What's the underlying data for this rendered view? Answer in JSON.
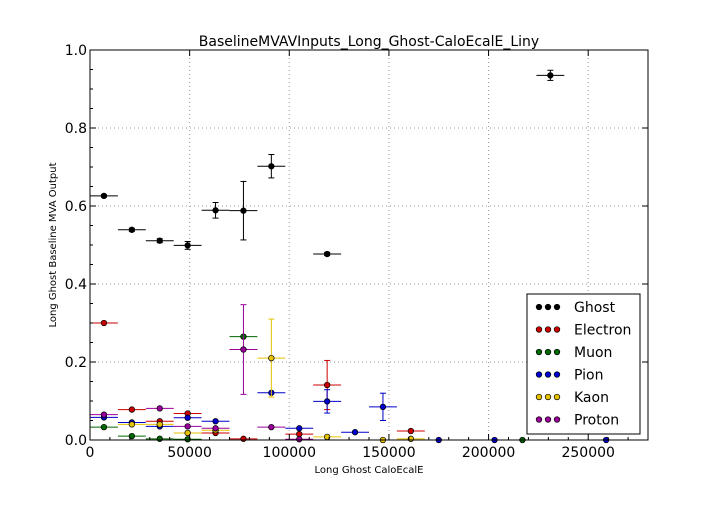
{
  "chart_data": {
    "type": "scatter",
    "title": "BaselineMVAVInputs_Long_Ghost-CaloEcalE_Liny",
    "xlabel": "Long Ghost CaloEcalE",
    "ylabel": "Long Ghost Baseline MVA Output",
    "xlim": [
      0,
      280000
    ],
    "ylim": [
      0,
      1.0
    ],
    "x_ticks": [
      0,
      50000,
      100000,
      150000,
      200000,
      250000
    ],
    "x_tick_labels": [
      "0",
      "50000",
      "100000",
      "150000",
      "200000",
      "250000"
    ],
    "y_ticks": [
      0.0,
      0.2,
      0.4,
      0.6,
      0.8,
      1.0
    ],
    "y_tick_labels": [
      "0.0",
      "0.2",
      "0.4",
      "0.6",
      "0.8",
      "1.0"
    ],
    "grid": true,
    "legend_position": "bottom-right",
    "series": [
      {
        "name": "Ghost",
        "color": "#000000",
        "points": [
          {
            "x": 7000,
            "y": 0.626,
            "xerr": 7000,
            "yerr": 0.003
          },
          {
            "x": 21000,
            "y": 0.539,
            "xerr": 7000,
            "yerr": 0.004
          },
          {
            "x": 35000,
            "y": 0.511,
            "xerr": 7000,
            "yerr": 0.005
          },
          {
            "x": 49000,
            "y": 0.499,
            "xerr": 7000,
            "yerr": 0.01
          },
          {
            "x": 63000,
            "y": 0.589,
            "xerr": 7000,
            "yerr": 0.02
          },
          {
            "x": 77000,
            "y": 0.588,
            "xerr": 7000,
            "yerr": 0.075
          },
          {
            "x": 91000,
            "y": 0.702,
            "xerr": 7000,
            "yerr": 0.03
          },
          {
            "x": 119000,
            "y": 0.477,
            "xerr": 7000,
            "yerr": 0.004
          },
          {
            "x": 231000,
            "y": 0.935,
            "xerr": 7000,
            "yerr": 0.013
          }
        ]
      },
      {
        "name": "Electron",
        "color": "#cc0000",
        "points": [
          {
            "x": 7000,
            "y": 0.3,
            "xerr": 7000,
            "yerr": 0.0
          },
          {
            "x": 21000,
            "y": 0.078,
            "xerr": 7000,
            "yerr": 0.0
          },
          {
            "x": 35000,
            "y": 0.048,
            "xerr": 7000,
            "yerr": 0.0
          },
          {
            "x": 49000,
            "y": 0.068,
            "xerr": 7000,
            "yerr": 0.0
          },
          {
            "x": 63000,
            "y": 0.018,
            "xerr": 7000,
            "yerr": 0.0
          },
          {
            "x": 77000,
            "y": 0.003,
            "xerr": 7000,
            "yerr": 0.0
          },
          {
            "x": 105000,
            "y": 0.015,
            "xerr": 7000,
            "yerr": 0.0
          },
          {
            "x": 119000,
            "y": 0.141,
            "xerr": 7000,
            "yerr": 0.063
          },
          {
            "x": 161000,
            "y": 0.023,
            "xerr": 7000,
            "yerr": 0.0
          }
        ]
      },
      {
        "name": "Muon",
        "color": "#006600",
        "points": [
          {
            "x": 7000,
            "y": 0.033,
            "xerr": 7000,
            "yerr": 0.0
          },
          {
            "x": 21000,
            "y": 0.01,
            "xerr": 7000,
            "yerr": 0.0
          },
          {
            "x": 35000,
            "y": 0.003,
            "xerr": 7000,
            "yerr": 0.0
          },
          {
            "x": 49000,
            "y": 0.002,
            "xerr": 7000,
            "yerr": 0.0
          },
          {
            "x": 77000,
            "y": 0.265,
            "xerr": 7000,
            "yerr": 0.0
          },
          {
            "x": 217000,
            "y": 0.0,
            "xerr": 7000,
            "yerr": 0.0
          }
        ]
      },
      {
        "name": "Pion",
        "color": "#0000cc",
        "points": [
          {
            "x": 7000,
            "y": 0.058,
            "xerr": 7000,
            "yerr": 0.0
          },
          {
            "x": 21000,
            "y": 0.045,
            "xerr": 7000,
            "yerr": 0.0
          },
          {
            "x": 35000,
            "y": 0.035,
            "xerr": 7000,
            "yerr": 0.0
          },
          {
            "x": 49000,
            "y": 0.057,
            "xerr": 7000,
            "yerr": 0.0
          },
          {
            "x": 63000,
            "y": 0.048,
            "xerr": 7000,
            "yerr": 0.0
          },
          {
            "x": 91000,
            "y": 0.121,
            "xerr": 7000,
            "yerr": 0.0
          },
          {
            "x": 105000,
            "y": 0.03,
            "xerr": 7000,
            "yerr": 0.0
          },
          {
            "x": 119000,
            "y": 0.099,
            "xerr": 7000,
            "yerr": 0.03
          },
          {
            "x": 133000,
            "y": 0.02,
            "xerr": 7000,
            "yerr": 0.0
          },
          {
            "x": 147000,
            "y": 0.085,
            "xerr": 7000,
            "yerr": 0.035
          },
          {
            "x": 175000,
            "y": 0.0,
            "xerr": 7000,
            "yerr": 0.0
          },
          {
            "x": 203000,
            "y": 0.0,
            "xerr": 7000,
            "yerr": 0.0
          },
          {
            "x": 259000,
            "y": 0.0,
            "xerr": 7000,
            "yerr": 0.0
          }
        ]
      },
      {
        "name": "Kaon",
        "color": "#e6c200",
        "points": [
          {
            "x": 21000,
            "y": 0.04,
            "xerr": 7000,
            "yerr": 0.0
          },
          {
            "x": 35000,
            "y": 0.04,
            "xerr": 7000,
            "yerr": 0.0
          },
          {
            "x": 49000,
            "y": 0.018,
            "xerr": 7000,
            "yerr": 0.0
          },
          {
            "x": 63000,
            "y": 0.025,
            "xerr": 7000,
            "yerr": 0.0
          },
          {
            "x": 91000,
            "y": 0.21,
            "xerr": 7000,
            "yerr": 0.1
          },
          {
            "x": 119000,
            "y": 0.008,
            "xerr": 7000,
            "yerr": 0.0
          },
          {
            "x": 147000,
            "y": 0.0,
            "xerr": 7000,
            "yerr": 0.0
          },
          {
            "x": 161000,
            "y": 0.003,
            "xerr": 7000,
            "yerr": 0.0
          }
        ]
      },
      {
        "name": "Proton",
        "color": "#990099",
        "points": [
          {
            "x": 7000,
            "y": 0.065,
            "xerr": 7000,
            "yerr": 0.0
          },
          {
            "x": 35000,
            "y": 0.081,
            "xerr": 7000,
            "yerr": 0.0
          },
          {
            "x": 49000,
            "y": 0.035,
            "xerr": 7000,
            "yerr": 0.0
          },
          {
            "x": 63000,
            "y": 0.03,
            "xerr": 7000,
            "yerr": 0.0
          },
          {
            "x": 77000,
            "y": 0.232,
            "xerr": 7000,
            "yerr": 0.115
          },
          {
            "x": 91000,
            "y": 0.033,
            "xerr": 7000,
            "yerr": 0.0
          },
          {
            "x": 105000,
            "y": 0.002,
            "xerr": 7000,
            "yerr": 0.0
          }
        ]
      }
    ]
  }
}
